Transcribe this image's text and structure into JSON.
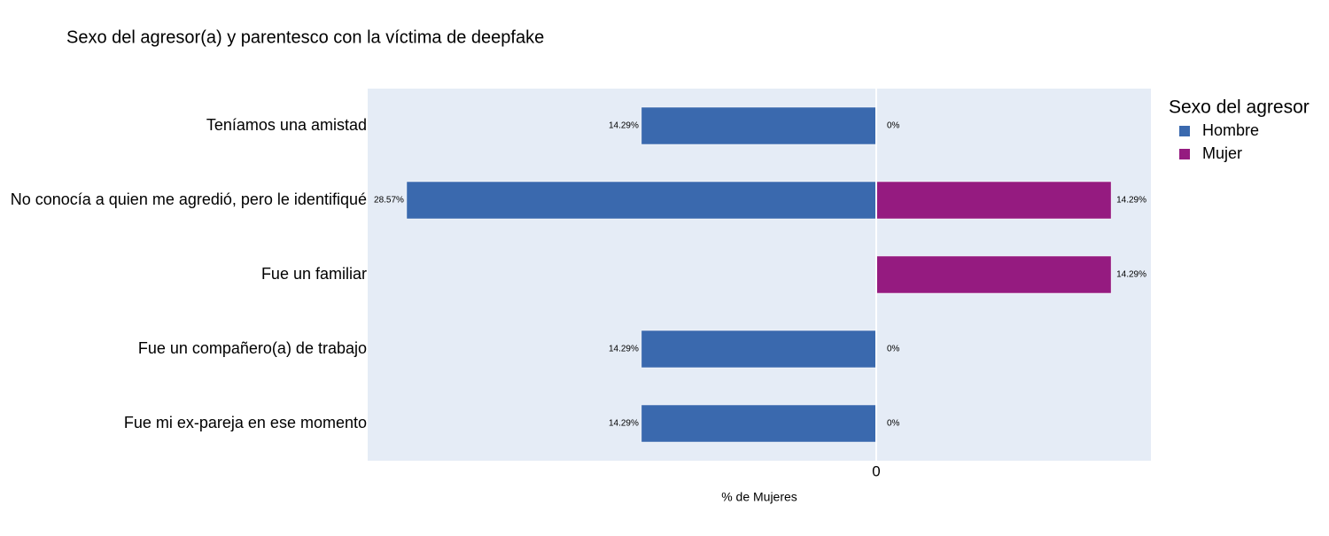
{
  "chart_data": {
    "type": "bar",
    "orientation": "horizontal",
    "title": "Sexo del agresor(a) y parentesco con la víctima de deepfake",
    "x_label": "% de Mujeres",
    "legend_title": "Sexo del agresor",
    "categories": [
      "Teníamos una amistad",
      "No conocía a quien me agredió, pero le identifiqué",
      "Fue un familiar",
      "Fue un compañero(a) de trabajo",
      "Fue mi ex-pareja en ese momento"
    ],
    "series": [
      {
        "name": "Hombre",
        "color": "#3a69ae",
        "values": [
          -14.29,
          -28.57,
          null,
          -14.29,
          -14.29
        ],
        "value_labels": [
          "14.29%",
          "28.57%",
          null,
          "14.29%",
          "14.29%"
        ]
      },
      {
        "name": "Mujer",
        "color": "#951b80",
        "values": [
          0,
          14.29,
          14.29,
          0,
          0
        ],
        "value_labels": [
          "0%",
          "14.29%",
          "14.29%",
          "0%",
          "0%"
        ]
      }
    ],
    "xlim": [
      -30.94,
      16.71
    ],
    "xticks": [
      0
    ],
    "zeroline": true
  }
}
